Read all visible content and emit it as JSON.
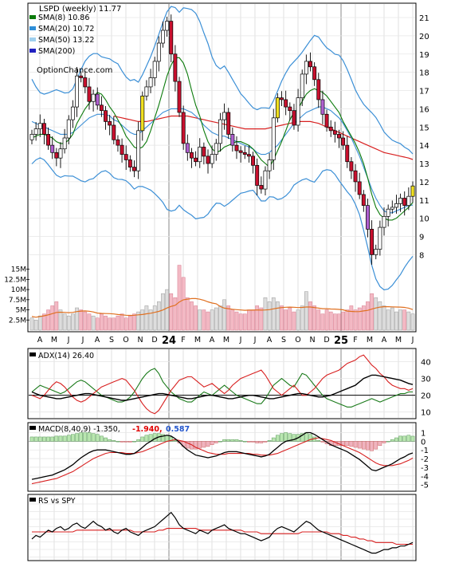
{
  "chart_data": [
    {
      "type": "candlestick",
      "name_panel": "price",
      "title": "LSPD (weekly) 11.77",
      "watermark": "OptionChance.com",
      "legend": [
        {
          "label": "SMA(8) 10.86",
          "color": "#0a7a0a"
        },
        {
          "label": "SMA(20) 10.72",
          "color": "#2f8fd8"
        },
        {
          "label": "SMA(50) 13.22",
          "color": "#9ecfee"
        },
        {
          "label": "SMA(200)",
          "color": "#2020c0"
        }
      ],
      "legend_placement": "top-left",
      "y_ticks": [
        8,
        9,
        10,
        11,
        12,
        13,
        14,
        15,
        16,
        17,
        18,
        19,
        20,
        21
      ],
      "y_range": [
        7.1,
        21.7
      ],
      "close": [
        14.6,
        14.9,
        15.2,
        14.6,
        14.0,
        13.6,
        13.3,
        13.8,
        14.4,
        15.4,
        16.1,
        17.8,
        17.7,
        17.2,
        16.4,
        16.8,
        16.2,
        15.9,
        15.3,
        15.1,
        14.3,
        14.0,
        13.5,
        13.2,
        12.8,
        12.6,
        14.8,
        16.7,
        17.2,
        17.7,
        18.6,
        19.6,
        20.3,
        20.8,
        19.0,
        17.5,
        15.8,
        14.1,
        13.6,
        13.3,
        13.1,
        13.9,
        13.4,
        13.0,
        13.5,
        14.1,
        15.4,
        15.8,
        14.6,
        14.0,
        13.7,
        13.6,
        13.5,
        13.4,
        12.9,
        11.8,
        11.6,
        12.6,
        13.2,
        15.5,
        16.6,
        16.5,
        16.1,
        15.9,
        15.1,
        16.6,
        17.9,
        18.6,
        18.3,
        17.6,
        16.5,
        15.7,
        15.0,
        14.8,
        14.6,
        14.4,
        14.0,
        13.1,
        12.6,
        12.0,
        11.3,
        10.7,
        9.4,
        8.0,
        8.3,
        9.5,
        10.1,
        10.5,
        10.6,
        10.8,
        11.1,
        10.7,
        11.2,
        11.77
      ],
      "sma8": [
        14.4,
        14.5,
        14.6,
        14.6,
        14.5,
        14.4,
        14.2,
        14.1,
        14.1,
        14.3,
        14.6,
        15.2,
        15.6,
        16.0,
        16.3,
        16.6,
        16.9,
        16.8,
        16.5,
        16.1,
        15.8,
        15.4,
        15.0,
        14.5,
        14.2,
        13.9,
        13.8,
        13.9,
        14.2,
        14.8,
        15.5,
        16.2,
        17.0,
        17.8,
        18.4,
        18.8,
        18.8,
        18.5,
        17.9,
        17.0,
        16.2,
        15.6,
        14.8,
        14.2,
        13.8,
        13.6,
        13.7,
        13.9,
        14.0,
        14.1,
        14.2,
        14.2,
        14.1,
        14.0,
        13.8,
        13.5,
        13.2,
        13.0,
        12.8,
        13.2,
        13.7,
        14.2,
        14.8,
        15.4,
        15.8,
        16.0,
        16.4,
        16.8,
        17.0,
        17.1,
        17.0,
        16.9,
        16.7,
        16.4,
        16.1,
        15.8,
        15.3,
        14.9,
        14.5,
        14.1,
        13.6,
        13.0,
        12.2,
        11.3,
        10.6,
        10.2,
        10.0,
        9.9,
        9.9,
        10.0,
        10.2,
        10.4,
        10.6,
        10.86
      ],
      "sma20": [
        15.3,
        15.2,
        15.1,
        15.0,
        14.9,
        14.8,
        14.7,
        14.6,
        14.6,
        14.6,
        14.7,
        14.9,
        15.1,
        15.3,
        15.5,
        15.6,
        15.7,
        15.7,
        15.7,
        15.6,
        15.4,
        15.3,
        15.1,
        14.9,
        14.7,
        14.6,
        14.6,
        14.8,
        15.0,
        15.2,
        15.4,
        15.6,
        15.8,
        15.9,
        16.0,
        16.0,
        16.0,
        16.0,
        15.9,
        15.8,
        15.6,
        15.4,
        15.1,
        14.9,
        14.7,
        14.6,
        14.5,
        14.5,
        14.4,
        14.3,
        14.2,
        14.1,
        14.0,
        13.9,
        13.8,
        13.6,
        13.5,
        13.5,
        13.6,
        13.8,
        14.0,
        14.3,
        14.6,
        14.9,
        15.2,
        15.4,
        15.6,
        15.8,
        15.9,
        16.0,
        16.1,
        16.1,
        16.0,
        15.9,
        15.7,
        15.5,
        15.2,
        14.8,
        14.4,
        13.9,
        13.4,
        12.8,
        12.2,
        11.6,
        11.1,
        10.7,
        10.4,
        10.3,
        10.3,
        10.4,
        10.5,
        10.6,
        10.7,
        10.72
      ],
      "sma50": [
        null,
        null,
        null,
        null,
        null,
        null,
        null,
        null,
        null,
        null,
        null,
        null,
        null,
        null,
        null,
        null,
        null,
        null,
        null,
        null,
        15.6,
        15.55,
        15.5,
        15.45,
        15.4,
        15.35,
        15.3,
        15.3,
        15.3,
        15.35,
        15.4,
        15.45,
        15.5,
        15.55,
        15.6,
        15.6,
        15.6,
        15.6,
        15.6,
        15.55,
        15.5,
        15.45,
        15.4,
        15.35,
        15.3,
        15.25,
        15.2,
        15.15,
        15.1,
        15.05,
        15.0,
        14.95,
        14.9,
        14.9,
        14.9,
        14.9,
        14.9,
        14.9,
        14.95,
        15.0,
        15.05,
        15.1,
        15.15,
        15.2,
        15.25,
        15.3,
        15.3,
        15.3,
        15.3,
        15.25,
        15.2,
        15.1,
        15.0,
        14.9,
        14.8,
        14.7,
        14.6,
        14.5,
        14.4,
        14.3,
        14.2,
        14.1,
        14.0,
        13.9,
        13.8,
        13.7,
        13.6,
        13.55,
        13.5,
        13.45,
        13.4,
        13.35,
        13.3,
        13.22
      ],
      "volume_panel": {
        "y_ticks": [
          "2.5M",
          "5M",
          "7.5M",
          "10M",
          "12.5M",
          "15M"
        ],
        "volume_millions": [
          3,
          2.5,
          3.5,
          4,
          5,
          6,
          7,
          5,
          4,
          3.5,
          4,
          5.5,
          5,
          4.5,
          4,
          3.5,
          3,
          4,
          3.5,
          3,
          3,
          3.5,
          4,
          3,
          3.5,
          4,
          4.5,
          5,
          6,
          5,
          6,
          7,
          9,
          10,
          9,
          8,
          16,
          13,
          8,
          7,
          6,
          5,
          5,
          4.5,
          5,
          5.5,
          6,
          7.5,
          6,
          5,
          4.5,
          4,
          4,
          5,
          5,
          6,
          5.5,
          8,
          7,
          8,
          7,
          6,
          5,
          5.5,
          4.5,
          5,
          6,
          9.5,
          7,
          6,
          5,
          4,
          5,
          4.5,
          4,
          4,
          4.5,
          5,
          6,
          5,
          5.5,
          6,
          7,
          9,
          8,
          7,
          6,
          5,
          5.5,
          4.5,
          5,
          5,
          4.5,
          4
        ],
        "volume_avg_millions": 4.2
      }
    },
    {
      "type": "line",
      "name_panel": "adx",
      "label": "ADX(14) 26.40",
      "y_ticks": [
        10,
        20,
        30,
        40
      ],
      "y_range": [
        7,
        46
      ],
      "adx": [
        22,
        21,
        20,
        19.5,
        19,
        18.5,
        18,
        18,
        18.5,
        19,
        19.5,
        20,
        20.5,
        21,
        21,
        20.5,
        20,
        19.5,
        19,
        18.5,
        18,
        17.5,
        17,
        17,
        17.5,
        18,
        18.5,
        19,
        19.5,
        20,
        20.5,
        21,
        21,
        20.5,
        20,
        19.5,
        19,
        18.5,
        18,
        18,
        18.5,
        19,
        19.5,
        20,
        20,
        19.5,
        19,
        18.5,
        18,
        18,
        18.5,
        19,
        19.5,
        20,
        20,
        19.5,
        19,
        18.5,
        18,
        18,
        18.5,
        19,
        19.5,
        20,
        20.5,
        21,
        21,
        20.5,
        20,
        19.5,
        19,
        19,
        19.5,
        20,
        21,
        22,
        23,
        24,
        25,
        26,
        28,
        30,
        31,
        32,
        32,
        31.5,
        31,
        30.5,
        30,
        29.5,
        29,
        28,
        27,
        26.4
      ],
      "plus_di": [
        22,
        24,
        26,
        25,
        24,
        23,
        22,
        21,
        22,
        24,
        26,
        28,
        29,
        28,
        26,
        24,
        22,
        20,
        19,
        18,
        17,
        16,
        16,
        17,
        19,
        22,
        26,
        30,
        33,
        35,
        36,
        33,
        28,
        25,
        22,
        20,
        18,
        17,
        16,
        16,
        18,
        20,
        22,
        21,
        20,
        22,
        24,
        26,
        24,
        22,
        20,
        19,
        18,
        17,
        16,
        15,
        15,
        18,
        22,
        26,
        28,
        30,
        28,
        26,
        25,
        29,
        33,
        32,
        29,
        26,
        23,
        20,
        18,
        17,
        16,
        15,
        14,
        13,
        13,
        14,
        15,
        16,
        17,
        18,
        17,
        16,
        17,
        18,
        19,
        20,
        21,
        21,
        22,
        22
      ],
      "minus_di": [
        20,
        19,
        18,
        20,
        23,
        26,
        28,
        27,
        25,
        22,
        19,
        17,
        16,
        17,
        19,
        21,
        23,
        25,
        26,
        27,
        28,
        29,
        30,
        29,
        26,
        23,
        19,
        15,
        12,
        10,
        9,
        11,
        15,
        19,
        23,
        26,
        29,
        30,
        31,
        31,
        29,
        27,
        25,
        26,
        27,
        25,
        23,
        21,
        23,
        26,
        28,
        30,
        31,
        32,
        33,
        34,
        35,
        32,
        28,
        24,
        22,
        20,
        22,
        24,
        26,
        23,
        20,
        20,
        22,
        24,
        27,
        30,
        32,
        33,
        34,
        35,
        37,
        39,
        40,
        41,
        43,
        44,
        41,
        38,
        36,
        33,
        31,
        28,
        26,
        25,
        24,
        24,
        23,
        24
      ]
    },
    {
      "type": "line",
      "name_panel": "macd",
      "label": "MACD(8,40,9) -1.350,",
      "signal_label": "-1.940,",
      "signal_color": "#e00000",
      "hist_label": "0.587",
      "hist_color": "#2255cc",
      "y_ticks": [
        -5,
        -4,
        -3,
        -2,
        -1,
        0,
        1
      ],
      "y_range": [
        -5.4,
        1.6
      ],
      "macd": [
        -4.4,
        -4.3,
        -4.2,
        -4.1,
        -4.0,
        -3.9,
        -3.7,
        -3.5,
        -3.3,
        -3.0,
        -2.7,
        -2.3,
        -1.9,
        -1.6,
        -1.3,
        -1.1,
        -1.0,
        -1.0,
        -1.0,
        -1.1,
        -1.2,
        -1.3,
        -1.4,
        -1.5,
        -1.5,
        -1.4,
        -1.1,
        -0.7,
        -0.3,
        0.0,
        0.3,
        0.5,
        0.6,
        0.7,
        0.6,
        0.3,
        -0.1,
        -0.6,
        -1.0,
        -1.3,
        -1.6,
        -1.7,
        -1.8,
        -1.9,
        -1.8,
        -1.7,
        -1.5,
        -1.3,
        -1.2,
        -1.2,
        -1.2,
        -1.3,
        -1.4,
        -1.5,
        -1.6,
        -1.7,
        -1.8,
        -1.7,
        -1.5,
        -1.1,
        -0.7,
        -0.3,
        0.0,
        0.1,
        0.2,
        0.4,
        0.7,
        1.0,
        1.0,
        0.8,
        0.5,
        0.2,
        -0.1,
        -0.4,
        -0.6,
        -0.8,
        -1.0,
        -1.2,
        -1.5,
        -1.8,
        -2.1,
        -2.5,
        -2.9,
        -3.3,
        -3.4,
        -3.2,
        -3.0,
        -2.8,
        -2.6,
        -2.3,
        -2.0,
        -1.8,
        -1.5,
        -1.35
      ],
      "signal": [
        -4.9,
        -4.8,
        -4.7,
        -4.6,
        -4.5,
        -4.4,
        -4.3,
        -4.1,
        -3.9,
        -3.7,
        -3.5,
        -3.2,
        -2.9,
        -2.6,
        -2.3,
        -2.0,
        -1.8,
        -1.6,
        -1.4,
        -1.3,
        -1.3,
        -1.3,
        -1.3,
        -1.4,
        -1.4,
        -1.4,
        -1.3,
        -1.2,
        -1.0,
        -0.8,
        -0.6,
        -0.4,
        -0.2,
        0.0,
        0.1,
        0.2,
        0.1,
        0.0,
        -0.2,
        -0.4,
        -0.7,
        -0.9,
        -1.1,
        -1.3,
        -1.4,
        -1.5,
        -1.5,
        -1.5,
        -1.4,
        -1.4,
        -1.4,
        -1.4,
        -1.4,
        -1.4,
        -1.5,
        -1.5,
        -1.6,
        -1.6,
        -1.6,
        -1.5,
        -1.4,
        -1.2,
        -1.0,
        -0.8,
        -0.6,
        -0.4,
        -0.2,
        0.0,
        0.2,
        0.3,
        0.4,
        0.3,
        0.2,
        0.1,
        -0.1,
        -0.3,
        -0.5,
        -0.7,
        -0.9,
        -1.1,
        -1.3,
        -1.6,
        -1.9,
        -2.2,
        -2.5,
        -2.7,
        -2.8,
        -2.8,
        -2.8,
        -2.7,
        -2.6,
        -2.4,
        -2.2,
        -1.94
      ]
    },
    {
      "type": "line",
      "name_panel": "rs",
      "label": "RS vs SPY",
      "rs": [
        60,
        62,
        61,
        63,
        65,
        64,
        66,
        67,
        65,
        66,
        68,
        69,
        67,
        66,
        68,
        70,
        68,
        67,
        65,
        66,
        64,
        63,
        65,
        66,
        64,
        63,
        62,
        64,
        65,
        66,
        67,
        69,
        71,
        73,
        75,
        72,
        68,
        66,
        65,
        64,
        63,
        65,
        64,
        63,
        65,
        66,
        67,
        68,
        66,
        65,
        64,
        63,
        63,
        62,
        61,
        60,
        59,
        60,
        61,
        64,
        66,
        67,
        66,
        65,
        64,
        66,
        68,
        70,
        69,
        67,
        65,
        64,
        63,
        62,
        61,
        60,
        59,
        58,
        57,
        56,
        55,
        54,
        53,
        52,
        52,
        53,
        54,
        54,
        55,
        55,
        56,
        56,
        57,
        58
      ],
      "rs_avg": [
        64,
        64,
        64,
        64,
        64,
        64,
        64,
        64,
        64,
        64,
        64,
        65,
        65,
        65,
        65,
        65,
        65,
        65,
        65,
        65,
        65,
        65,
        65,
        65,
        65,
        64,
        64,
        64,
        64,
        64,
        64,
        65,
        65,
        66,
        66,
        66,
        66,
        66,
        66,
        66,
        66,
        65,
        65,
        65,
        65,
        65,
        65,
        65,
        65,
        65,
        65,
        65,
        64,
        64,
        64,
        64,
        63,
        63,
        63,
        63,
        63,
        63,
        63,
        63,
        63,
        63,
        64,
        64,
        64,
        64,
        64,
        64,
        64,
        63,
        63,
        63,
        62,
        62,
        61,
        61,
        60,
        60,
        59,
        59,
        58,
        58,
        58,
        58,
        58,
        57,
        57,
        57,
        57,
        57
      ]
    }
  ],
  "x_axis": {
    "labels": [
      "A",
      "M",
      "J",
      "J",
      "A",
      "S",
      "O",
      "N",
      "D",
      "24",
      "F",
      "M",
      "A",
      "M",
      "J",
      "J",
      "A",
      "S",
      "O",
      "N",
      "D",
      "25",
      "F",
      "M",
      "A",
      "M",
      "J"
    ],
    "year_labels": [
      "24",
      "25"
    ]
  }
}
